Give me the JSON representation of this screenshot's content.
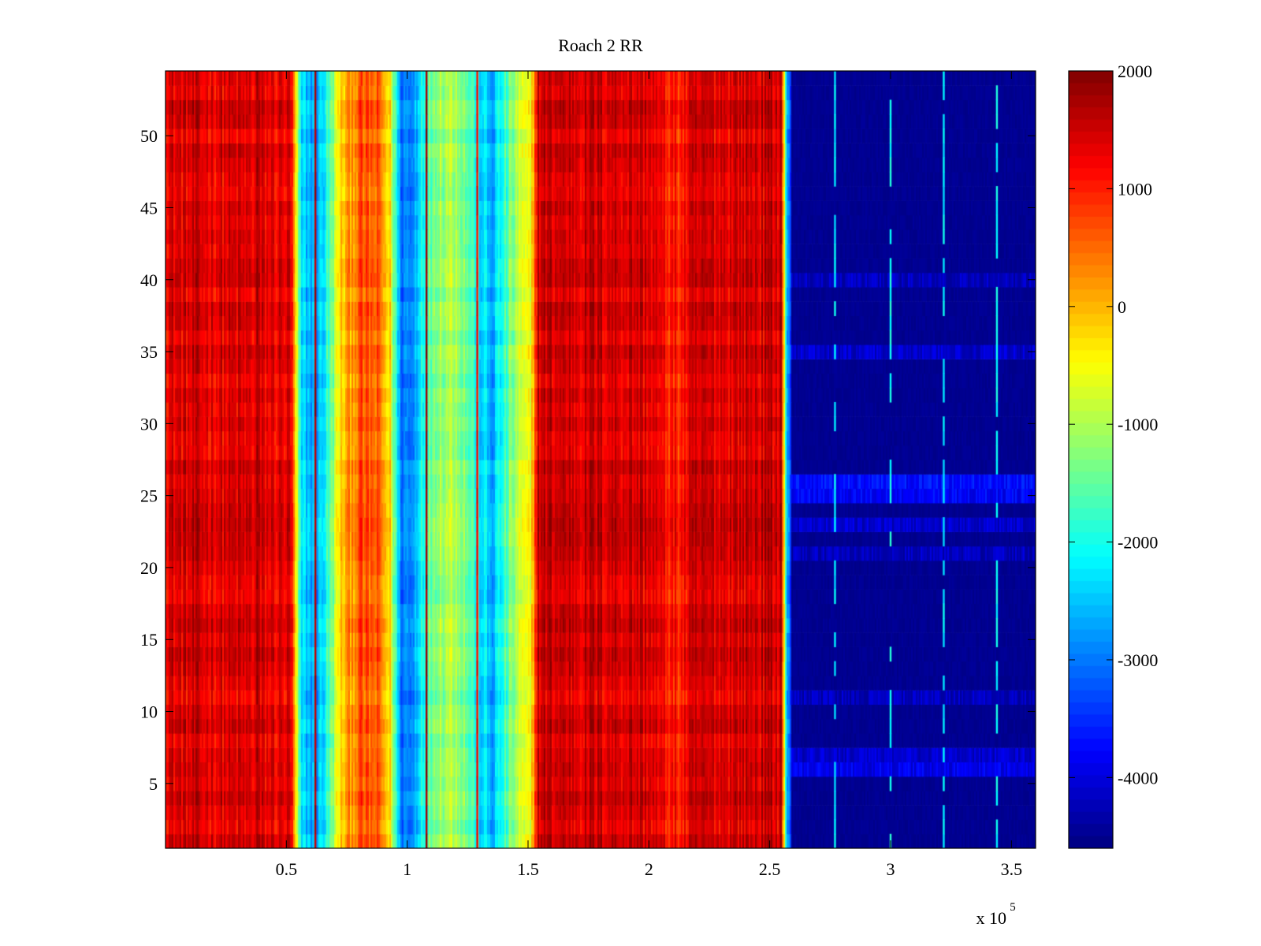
{
  "chart_data": {
    "type": "heatmap",
    "title": "Roach 2 RR",
    "xlabel": "",
    "ylabel": "",
    "x_scale_label": "x 10",
    "x_scale_exponent": "5",
    "xlim": [
      0,
      360000
    ],
    "ylim": [
      0.5,
      54.5
    ],
    "x_ticks": [
      {
        "value": 50000,
        "label": "0.5"
      },
      {
        "value": 100000,
        "label": "1"
      },
      {
        "value": 150000,
        "label": "1.5"
      },
      {
        "value": 200000,
        "label": "2"
      },
      {
        "value": 250000,
        "label": "2.5"
      },
      {
        "value": 300000,
        "label": "3"
      },
      {
        "value": 350000,
        "label": "3.5"
      }
    ],
    "y_ticks": [
      {
        "value": 5,
        "label": "5"
      },
      {
        "value": 10,
        "label": "10"
      },
      {
        "value": 15,
        "label": "15"
      },
      {
        "value": 20,
        "label": "20"
      },
      {
        "value": 25,
        "label": "25"
      },
      {
        "value": 30,
        "label": "30"
      },
      {
        "value": 35,
        "label": "35"
      },
      {
        "value": 40,
        "label": "40"
      },
      {
        "value": 45,
        "label": "45"
      },
      {
        "value": 50,
        "label": "50"
      }
    ],
    "colorbar": {
      "colormap": "jet",
      "clim": [
        -4600,
        2000
      ],
      "ticks": [
        {
          "value": 2000,
          "label": "2000"
        },
        {
          "value": 1000,
          "label": "1000"
        },
        {
          "value": 0,
          "label": "0"
        },
        {
          "value": -1000,
          "label": "-1000"
        },
        {
          "value": -2000,
          "label": "-2000"
        },
        {
          "value": -3000,
          "label": "-3000"
        },
        {
          "value": -4000,
          "label": "-4000"
        }
      ]
    },
    "rows": 54,
    "column_profile": [
      {
        "x": 0,
        "value": 1400
      },
      {
        "x": 30000,
        "value": 1350
      },
      {
        "x": 52000,
        "value": 1300
      },
      {
        "x": 56000,
        "value": -2400
      },
      {
        "x": 63000,
        "value": -2700
      },
      {
        "x": 68000,
        "value": -1700
      },
      {
        "x": 72000,
        "value": -300
      },
      {
        "x": 80000,
        "value": 600
      },
      {
        "x": 88000,
        "value": 500
      },
      {
        "x": 93000,
        "value": -400
      },
      {
        "x": 97000,
        "value": -2900
      },
      {
        "x": 102000,
        "value": -3000
      },
      {
        "x": 106000,
        "value": -1900
      },
      {
        "x": 112000,
        "value": -1100
      },
      {
        "x": 120000,
        "value": -900
      },
      {
        "x": 126000,
        "value": -1600
      },
      {
        "x": 130000,
        "value": -2200
      },
      {
        "x": 135000,
        "value": -2700
      },
      {
        "x": 140000,
        "value": -1900
      },
      {
        "x": 146000,
        "value": -900
      },
      {
        "x": 151000,
        "value": -700
      },
      {
        "x": 154000,
        "value": 1500
      },
      {
        "x": 200000,
        "value": 1450
      },
      {
        "x": 206000,
        "value": 1100
      },
      {
        "x": 212000,
        "value": 1000
      },
      {
        "x": 220000,
        "value": 1400
      },
      {
        "x": 255000,
        "value": 1500
      },
      {
        "x": 257000,
        "value": -2500
      },
      {
        "x": 260000,
        "value": -4500
      },
      {
        "x": 360000,
        "value": -4500
      }
    ],
    "streaks": [
      {
        "x": 62000,
        "value": 1700
      },
      {
        "x": 108000,
        "value": 1800
      },
      {
        "x": 129000,
        "value": 1200
      },
      {
        "x": 38000,
        "value": 1800
      },
      {
        "x": 277000,
        "value": -2200
      },
      {
        "x": 300000,
        "value": -2000
      },
      {
        "x": 322000,
        "value": -2200
      },
      {
        "x": 344000,
        "value": -2100
      }
    ],
    "row_bands": [
      {
        "y": 6,
        "value": -3900
      },
      {
        "y": 7,
        "value": -4100
      },
      {
        "y": 11,
        "value": -4200
      },
      {
        "y": 21,
        "value": -4200
      },
      {
        "y": 23,
        "value": -4100
      },
      {
        "y": 25,
        "value": -3800
      },
      {
        "y": 26,
        "value": -3700
      },
      {
        "y": 35,
        "value": -4100
      },
      {
        "y": 40,
        "value": -4200
      }
    ]
  }
}
